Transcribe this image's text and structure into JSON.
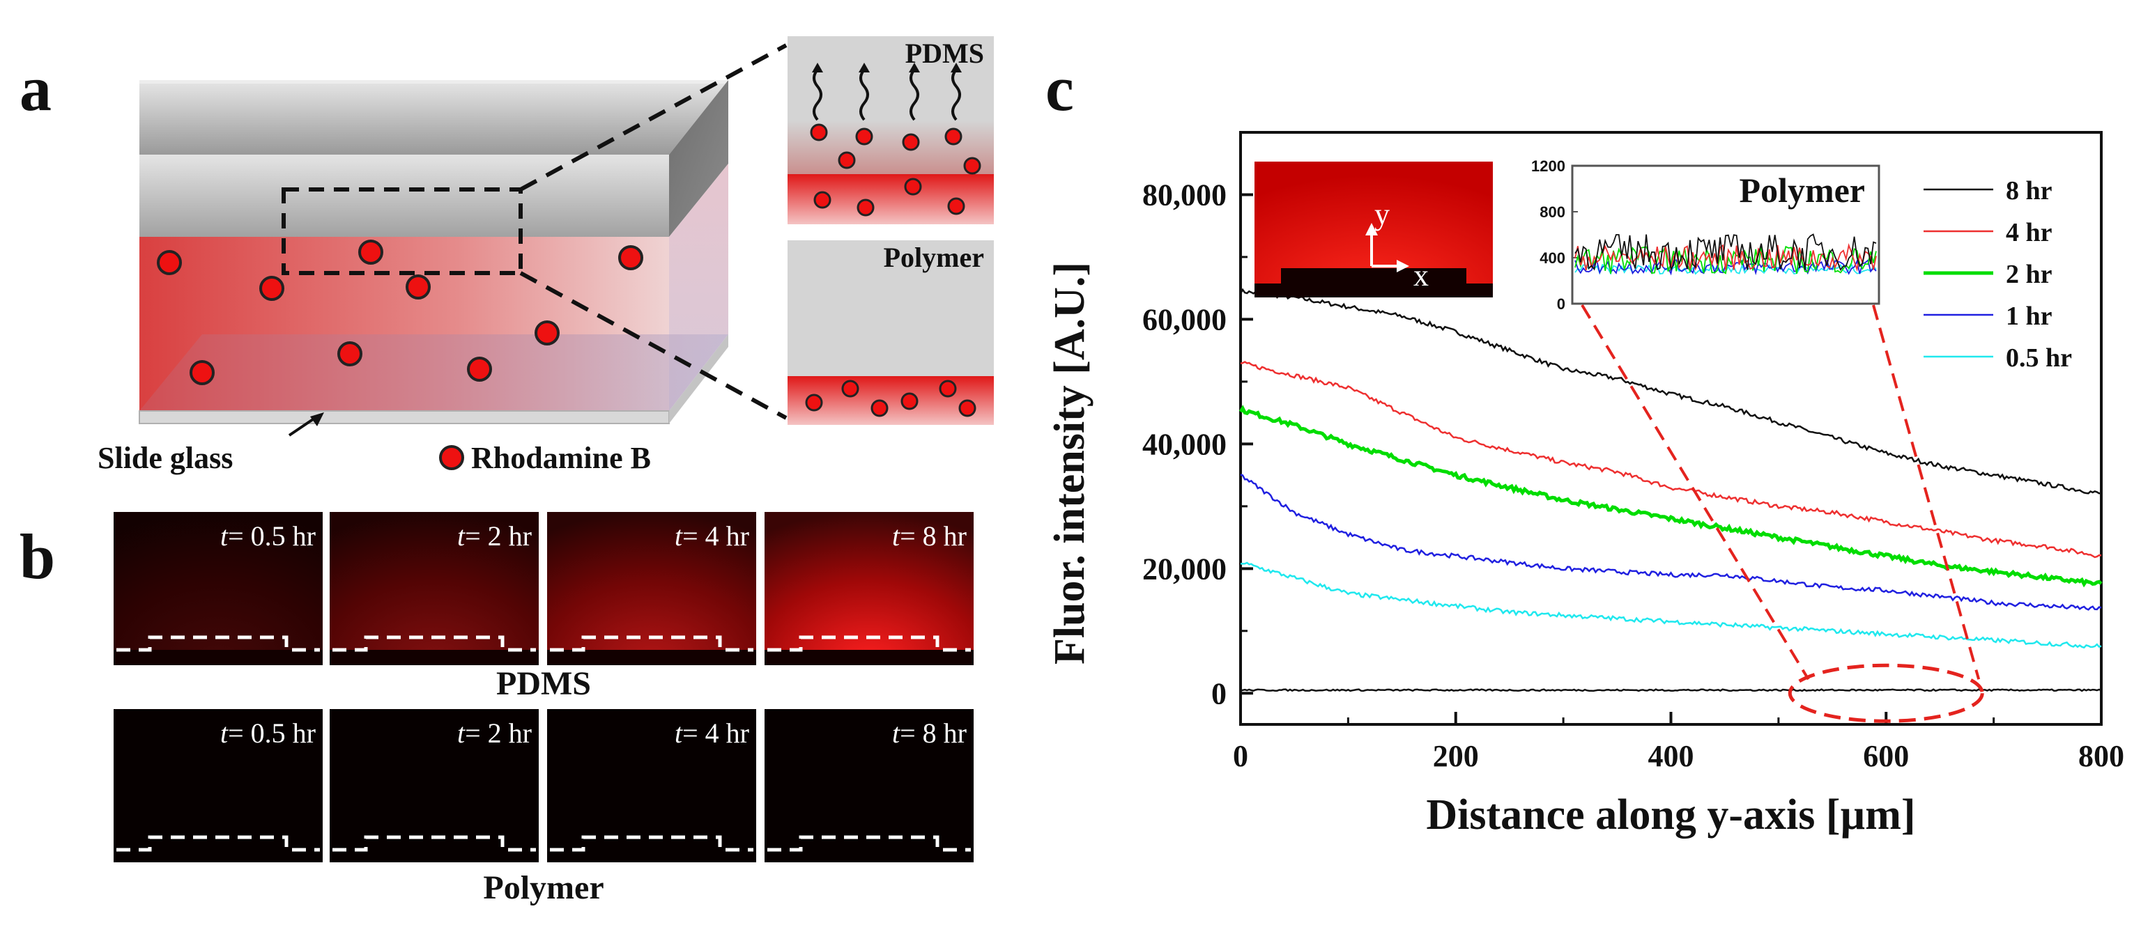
{
  "panels": {
    "a": {
      "letter": "a",
      "slide_glass_label": "Slide glass",
      "rhodamine_label": "Rhodamine B",
      "zoom_top_label": "PDMS",
      "zoom_bottom_label": "Polymer"
    },
    "b": {
      "letter": "b",
      "times": [
        "= 0.5 hr",
        "= 2 hr",
        "= 4 hr",
        "= 8 hr"
      ],
      "time_var": "t",
      "row_pdms_label": "PDMS",
      "row_polymer_label": "Polymer",
      "pdms_glow": [
        0.25,
        0.5,
        0.7,
        1.0
      ]
    },
    "c": {
      "letter": "c"
    }
  },
  "colors": {
    "red": "#e4231e",
    "rhodamine": "#ee1111",
    "black": "#000000",
    "blue": "#2020e0",
    "green": "#00dd00",
    "cyan": "#20e8ee",
    "grey": "#c8c8c8"
  },
  "chart_data": [
    {
      "type": "line",
      "title": "",
      "xlabel": "Distance along y-axis [µm]",
      "ylabel": "Fluor. intensity [A.U.]",
      "xlim": [
        0,
        800
      ],
      "ylim": [
        -5000,
        90000
      ],
      "xticks": [
        0,
        200,
        400,
        600,
        800
      ],
      "yticks": [
        0,
        20000,
        40000,
        60000,
        80000
      ],
      "ytick_labels": [
        "0",
        "20,000",
        "40,000",
        "60,000",
        "80,000"
      ],
      "legend": [
        "8 hr",
        "4 hr",
        "2 hr",
        "1 hr",
        "0.5 hr"
      ],
      "series": [
        {
          "name": "8 hr",
          "color": "#111111",
          "x": [
            0,
            50,
            100,
            150,
            200,
            250,
            300,
            350,
            400,
            450,
            500,
            550,
            600,
            650,
            700,
            750,
            800
          ],
          "values": [
            64500,
            63500,
            62000,
            60500,
            58000,
            55000,
            52000,
            50500,
            48000,
            46000,
            43500,
            41000,
            38500,
            36500,
            35000,
            33500,
            32000
          ]
        },
        {
          "name": "4 hr",
          "color": "#ee3030",
          "x": [
            0,
            50,
            100,
            150,
            200,
            250,
            300,
            350,
            400,
            450,
            500,
            550,
            600,
            650,
            700,
            750,
            800
          ],
          "values": [
            53000,
            51000,
            49000,
            45000,
            41000,
            39000,
            37000,
            35500,
            33000,
            31500,
            30000,
            29000,
            27500,
            26000,
            24500,
            23500,
            22000
          ]
        },
        {
          "name": "2 hr",
          "color": "#00dd00",
          "x": [
            0,
            50,
            100,
            150,
            200,
            250,
            300,
            350,
            400,
            450,
            500,
            550,
            600,
            650,
            700,
            750,
            800
          ],
          "values": [
            45500,
            43000,
            40000,
            37500,
            35000,
            33000,
            31000,
            29500,
            28000,
            26500,
            25000,
            23500,
            22000,
            20500,
            19500,
            18500,
            17500
          ]
        },
        {
          "name": "1 hr",
          "color": "#2020e0",
          "x": [
            0,
            50,
            100,
            150,
            200,
            250,
            300,
            350,
            400,
            450,
            500,
            550,
            600,
            650,
            700,
            750,
            800
          ],
          "values": [
            35000,
            29000,
            25500,
            23000,
            22000,
            21000,
            20000,
            19500,
            19000,
            19000,
            18000,
            17000,
            16500,
            15500,
            14500,
            14000,
            13500
          ]
        },
        {
          "name": "0.5 hr",
          "color": "#20e8ee",
          "x": [
            0,
            50,
            100,
            150,
            200,
            250,
            300,
            350,
            400,
            450,
            500,
            550,
            600,
            650,
            700,
            750,
            800
          ],
          "values": [
            21000,
            18500,
            16000,
            15000,
            14000,
            13000,
            12500,
            12000,
            11500,
            11000,
            10500,
            10000,
            9500,
            9000,
            8500,
            8000,
            7500
          ]
        },
        {
          "name": "Polymer",
          "color": "#111111",
          "x": [
            0,
            400,
            800
          ],
          "values": [
            500,
            500,
            500
          ]
        }
      ],
      "annotation": "dashed red ellipse near 520–690 µm at 0, zoomed into inset",
      "image_inset_labels": {
        "y": "y",
        "x": "x"
      }
    },
    {
      "type": "line",
      "title": "Polymer",
      "ylim": [
        0,
        1200
      ],
      "yticks": [
        0,
        400,
        800,
        1200
      ],
      "ytick_labels": [
        "0",
        "400",
        "800",
        "1200"
      ],
      "series_note": "noisy traces around 300–500 for each time point",
      "series": [
        {
          "name": "8 hr",
          "color": "#111111",
          "mean": 450,
          "amp": 160
        },
        {
          "name": "4 hr",
          "color": "#ee3030",
          "mean": 400,
          "amp": 110
        },
        {
          "name": "2 hr",
          "color": "#00dd00",
          "mean": 380,
          "amp": 120
        },
        {
          "name": "1 hr",
          "color": "#2020e0",
          "mean": 320,
          "amp": 60
        },
        {
          "name": "0.5 hr",
          "color": "#20e8ee",
          "mean": 300,
          "amp": 40
        }
      ]
    }
  ]
}
